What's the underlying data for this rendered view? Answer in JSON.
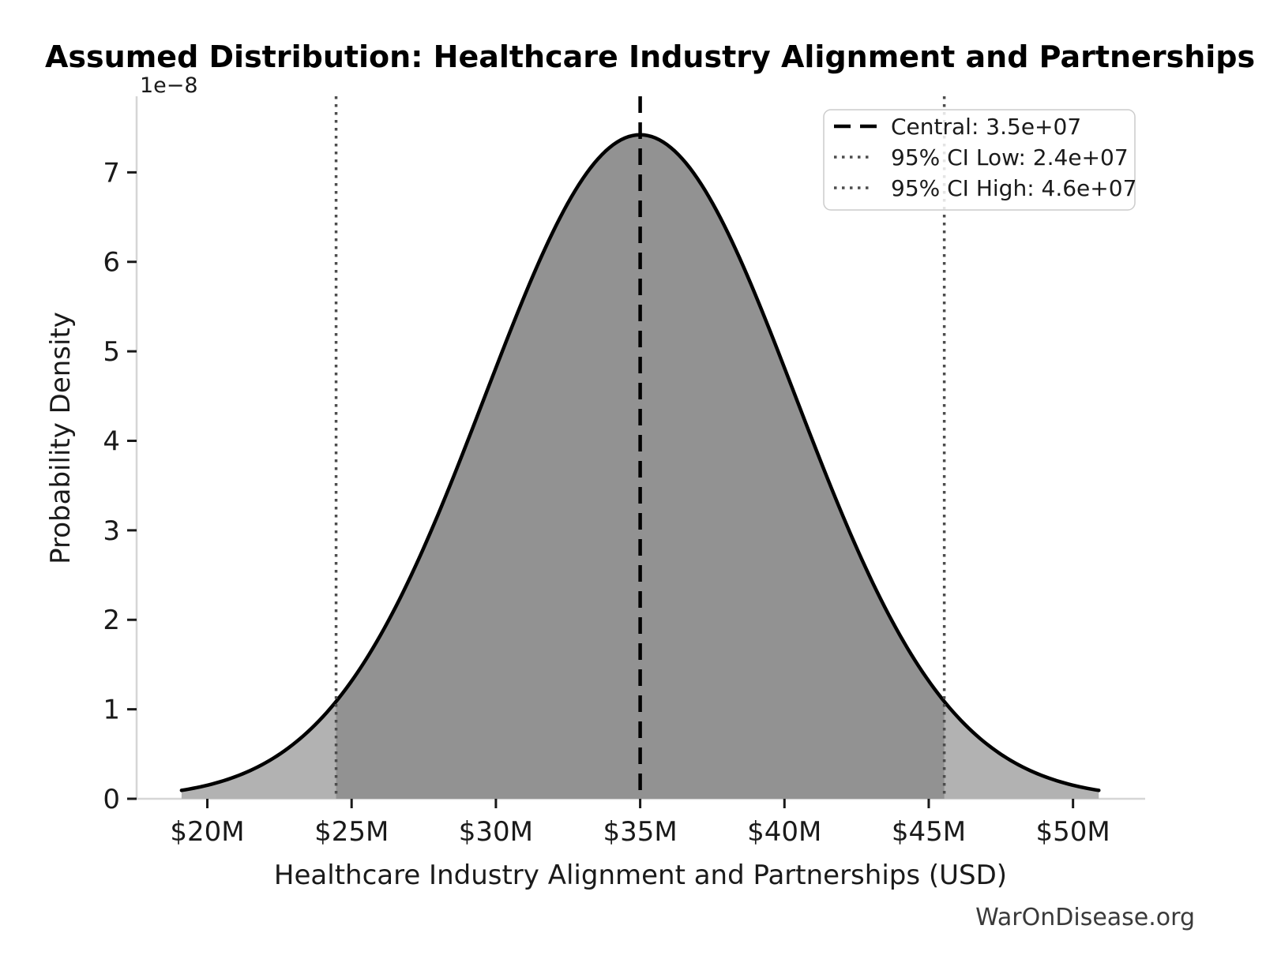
{
  "chart_data": {
    "type": "area",
    "title": "Assumed Distribution: Healthcare Industry Alignment and Partnerships",
    "xlabel": "Healthcare Industry Alignment and Partnerships (USD)",
    "ylabel": "Probability Density",
    "y_offset_label": "1e−8",
    "watermark": "WarOnDisease.org",
    "distribution": {
      "kind": "normal",
      "mean": 35000000,
      "sigma": 5377000,
      "peak_density": 7.42e-08,
      "x_data_min": 19107000,
      "x_data_max": 50893000
    },
    "markers": {
      "central": {
        "value": 35000000,
        "label": "Central: 3.5e+07",
        "style": "dashed",
        "color": "#000000"
      },
      "ci_low": {
        "value": 24462000,
        "label": "95% CI Low: 2.4e+07",
        "style": "dotted",
        "color": "#4d4d4d"
      },
      "ci_high": {
        "value": 45538000,
        "label": "95% CI High: 4.6e+07",
        "style": "dotted",
        "color": "#4d4d4d"
      }
    },
    "x_ticks": [
      {
        "value": 20000000,
        "label": "$20M"
      },
      {
        "value": 25000000,
        "label": "$25M"
      },
      {
        "value": 30000000,
        "label": "$30M"
      },
      {
        "value": 35000000,
        "label": "$35M"
      },
      {
        "value": 40000000,
        "label": "$40M"
      },
      {
        "value": 45000000,
        "label": "$45M"
      },
      {
        "value": 50000000,
        "label": "$50M"
      }
    ],
    "y_ticks": [
      {
        "value": 0,
        "label": "0"
      },
      {
        "value": 1e-08,
        "label": "1"
      },
      {
        "value": 2e-08,
        "label": "2"
      },
      {
        "value": 3e-08,
        "label": "3"
      },
      {
        "value": 4e-08,
        "label": "4"
      },
      {
        "value": 5e-08,
        "label": "5"
      },
      {
        "value": 6e-08,
        "label": "6"
      },
      {
        "value": 7e-08,
        "label": "7"
      }
    ],
    "xlim": [
      17550000,
      52500000
    ],
    "ylim": [
      0,
      7.85e-08
    ],
    "grid": false,
    "legend_position": "upper right",
    "colors": {
      "curve": "#000000",
      "fill_tail": "#b2b2b2",
      "fill_ci": "#929292",
      "spine": "#d6d6d6",
      "tick": "#1a1a1a"
    }
  }
}
